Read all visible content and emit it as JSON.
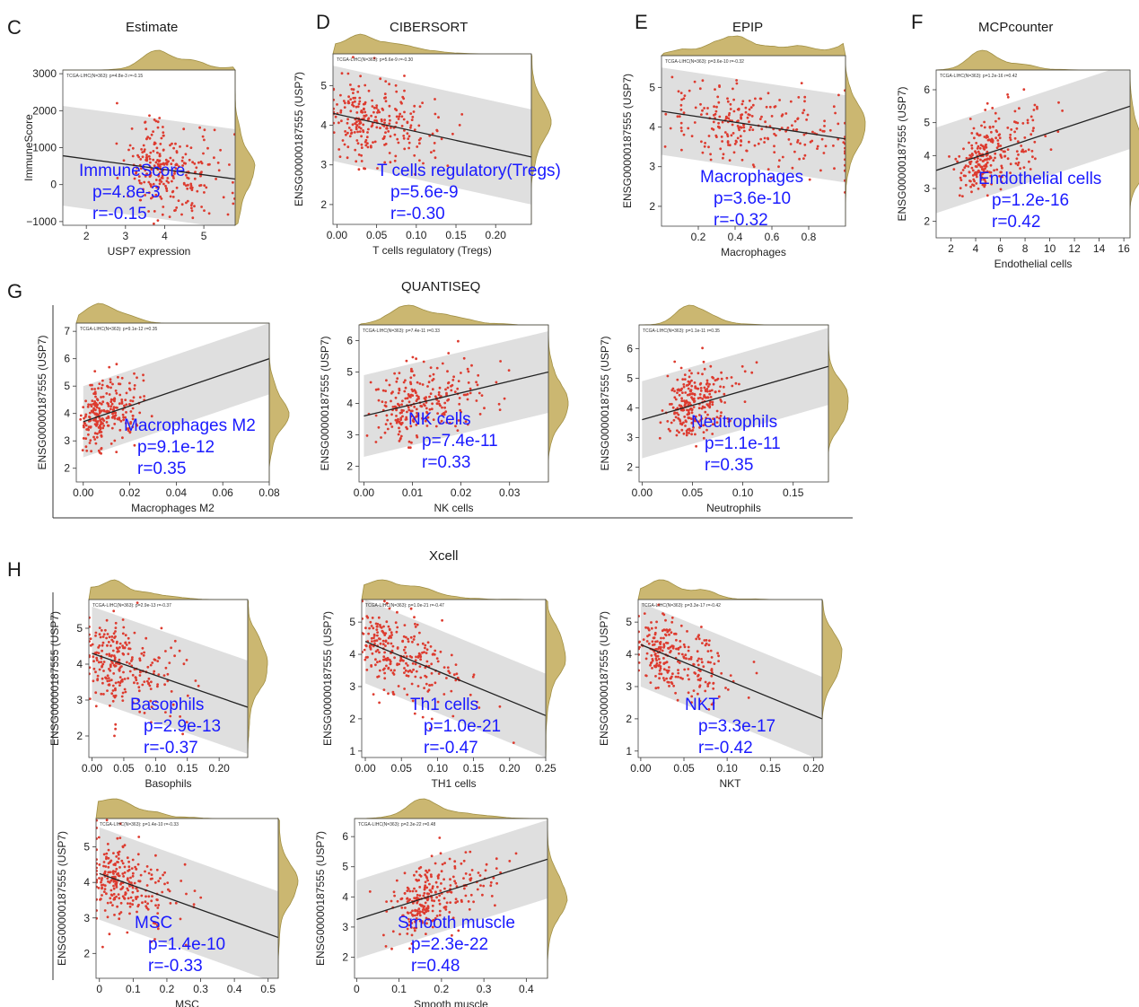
{
  "colors": {
    "point": "#dd3b2f",
    "band": "#d9d9d9",
    "line": "#222222",
    "density_fill": "#c9b46a",
    "density_stroke": "#9c8a3a",
    "annotation": "#1a1aff"
  },
  "sections": [
    {
      "letter": "C",
      "title": "Estimate"
    },
    {
      "letter": "D",
      "title": "CIBERSORT"
    },
    {
      "letter": "E",
      "title": "EPIP"
    },
    {
      "letter": "F",
      "title": "MCPcounter"
    },
    {
      "letter": "G",
      "title": "QUANTISEQ"
    },
    {
      "letter": "H",
      "title": "Xcell"
    }
  ],
  "chart_data": [
    {
      "type": "scatter",
      "id": "immunescore",
      "panel": "C",
      "xlabel": "USP7 expression",
      "ylabel": "ImmuneScore",
      "xlim": [
        1.4,
        5.8
      ],
      "ylim": [
        -1100,
        3100
      ],
      "xticks": [
        2,
        3,
        4,
        5
      ],
      "yticks": [
        -1000,
        0,
        1000,
        2000,
        3000
      ],
      "yticklabels": [
        "−1000",
        "0",
        "1000",
        "2000",
        "3000"
      ],
      "small_label": "TCGA-LIHC(N=363): p=4.8e-3 r=-0.15",
      "annotation": [
        "ImmuneScore",
        "p=4.8e-3",
        "r=-0.15"
      ],
      "fit": {
        "x": [
          1.4,
          5.8
        ],
        "y": [
          780,
          150
        ]
      },
      "band_halfwidth": 1350,
      "points_n": 363,
      "x_center": 4.0,
      "x_spread": 0.75
    },
    {
      "type": "scatter",
      "id": "tregs",
      "panel": "D",
      "xlabel": "T cells regulatory (Tregs)",
      "ylabel": "ENSG00000187555 (USP7)",
      "xlim": [
        -0.005,
        0.245
      ],
      "ylim": [
        1.5,
        5.8
      ],
      "xticks": [
        0,
        0.05,
        0.1,
        0.15,
        0.2
      ],
      "xticklabels": [
        "0.00",
        "0.05",
        "0.10",
        "0.15",
        "0.20"
      ],
      "yticks": [
        2,
        3,
        4,
        5
      ],
      "small_label": "TCGA-LIHC(N=363): p=5.6e-9 r=-0.30",
      "annotation": [
        "T cells regulatory(Tregs)",
        "p=5.6e-9",
        "r=-0.30"
      ],
      "fit": {
        "x": [
          -0.005,
          0.245
        ],
        "y": [
          4.3,
          3.2
        ]
      },
      "band_halfwidth": 1.2,
      "points_n": 363,
      "x_center": 0.04,
      "x_spread": 0.035
    },
    {
      "type": "scatter",
      "id": "macrophages",
      "panel": "E",
      "xlabel": "Macrophages",
      "ylabel": "ENSG00000187555 (USP7)",
      "xlim": [
        0,
        1.0
      ],
      "ylim": [
        1.5,
        5.8
      ],
      "xticks": [
        0.2,
        0.4,
        0.6,
        0.8
      ],
      "yticks": [
        2,
        3,
        4,
        5
      ],
      "small_label": "TCGA-LIHC(N=363): p=3.6e-10 r=-0.32",
      "annotation": [
        "Macrophages",
        "p=3.6e-10",
        "r=-0.32"
      ],
      "fit": {
        "x": [
          0,
          1.0
        ],
        "y": [
          4.4,
          3.7
        ]
      },
      "band_halfwidth": 1.1,
      "points_n": 363,
      "x_center": 0.45,
      "x_spread": 0.3
    },
    {
      "type": "scatter",
      "id": "endothelial",
      "panel": "F",
      "xlabel": "Endothelial cells",
      "ylabel": "ENSG00000187555 (USP7)",
      "xlim": [
        0.8,
        16.5
      ],
      "ylim": [
        1.5,
        6.6
      ],
      "xticks": [
        2,
        4,
        6,
        8,
        10,
        12,
        14,
        16
      ],
      "yticks": [
        2,
        3,
        4,
        5,
        6
      ],
      "small_label": "TCGA-LIHC(N=363): p=1.2e-16 r=0.42",
      "annotation": [
        "Endothelial cells",
        "p=1.2e-16",
        "r=0.42"
      ],
      "fit": {
        "x": [
          0.8,
          16.5
        ],
        "y": [
          3.55,
          5.5
        ]
      },
      "band_halfwidth": 1.3,
      "points_n": 363,
      "x_center": 5.0,
      "x_spread": 2.0
    },
    {
      "type": "scatter",
      "id": "macrophages-m2",
      "panel": "G",
      "xlabel": "Macrophages M2",
      "ylabel": "ENSG00000187555 (USP7)",
      "xlim": [
        -0.003,
        0.08
      ],
      "ylim": [
        1.5,
        7.3
      ],
      "xticks": [
        0,
        0.02,
        0.04,
        0.06,
        0.08
      ],
      "xticklabels": [
        "0.00",
        "0.02",
        "0.04",
        "0.06",
        "0.08"
      ],
      "yticks": [
        2,
        3,
        4,
        5,
        6,
        7
      ],
      "small_label": "TCGA-LIHC(N=363): p=9.1e-12 r=0.35",
      "annotation": [
        "Macrophages M2",
        "p=9.1e-12",
        "r=0.35"
      ],
      "fit": {
        "x": [
          0,
          0.08
        ],
        "y": [
          3.7,
          6.0
        ]
      },
      "band_halfwidth": 1.3,
      "points_n": 363,
      "x_center": 0.008,
      "x_spread": 0.007
    },
    {
      "type": "scatter",
      "id": "nk-cells",
      "panel": "G",
      "xlabel": "NK cells",
      "ylabel": "ENSG00000187555 (USP7)",
      "xlim": [
        -0.001,
        0.038
      ],
      "ylim": [
        1.5,
        6.5
      ],
      "xticks": [
        0,
        0.01,
        0.02,
        0.03
      ],
      "xticklabels": [
        "0.00",
        "0.01",
        "0.02",
        "0.03"
      ],
      "yticks": [
        2,
        3,
        4,
        5,
        6
      ],
      "small_label": "TCGA-LIHC(N=363): p=7.4e-11 r=0.33",
      "annotation": [
        "NK cells",
        "p=7.4e-11",
        "r=0.33"
      ],
      "fit": {
        "x": [
          0,
          0.038
        ],
        "y": [
          3.6,
          5.0
        ]
      },
      "band_halfwidth": 1.3,
      "points_n": 363,
      "x_center": 0.011,
      "x_spread": 0.006
    },
    {
      "type": "scatter",
      "id": "neutrophils",
      "panel": "G",
      "xlabel": "Neutrophils",
      "ylabel": "ENSG00000187555 (USP7)",
      "xlim": [
        -0.003,
        0.185
      ],
      "ylim": [
        1.5,
        6.8
      ],
      "xticks": [
        0,
        0.05,
        0.1,
        0.15
      ],
      "xticklabels": [
        "0.00",
        "0.05",
        "0.10",
        "0.15"
      ],
      "yticks": [
        2,
        3,
        4,
        5,
        6
      ],
      "small_label": "TCGA-LIHC(N=363): p=1.1e-11 r=0.35",
      "annotation": [
        "Neutrophils",
        "p=1.1e-11",
        "r=0.35"
      ],
      "fit": {
        "x": [
          0,
          0.185
        ],
        "y": [
          3.6,
          5.4
        ]
      },
      "band_halfwidth": 1.3,
      "points_n": 363,
      "x_center": 0.05,
      "x_spread": 0.02
    },
    {
      "type": "scatter",
      "id": "basophils",
      "panel": "H",
      "xlabel": "Basophils",
      "ylabel": "ENSG00000187555 (USP7)",
      "xlim": [
        -0.005,
        0.245
      ],
      "ylim": [
        1.4,
        5.8
      ],
      "xticks": [
        0,
        0.05,
        0.1,
        0.15,
        0.2
      ],
      "xticklabels": [
        "0.00",
        "0.05",
        "0.10",
        "0.15",
        "0.20"
      ],
      "yticks": [
        2,
        3,
        4,
        5
      ],
      "small_label": "TCGA-LIHC(N=363): p=2.9e-13 r=-0.37",
      "annotation": [
        "Basophils",
        "p=2.9e-13",
        "r=-0.37"
      ],
      "fit": {
        "x": [
          0,
          0.245
        ],
        "y": [
          4.3,
          2.8
        ]
      },
      "band_halfwidth": 1.3,
      "points_n": 363,
      "x_center": 0.04,
      "x_spread": 0.04
    },
    {
      "type": "scatter",
      "id": "th1-cells",
      "panel": "H",
      "xlabel": "TH1 cells",
      "ylabel": "ENSG00000187555 (USP7)",
      "xlim": [
        -0.005,
        0.25
      ],
      "ylim": [
        0.8,
        5.7
      ],
      "xticks": [
        0,
        0.05,
        0.1,
        0.15,
        0.2,
        0.25
      ],
      "xticklabels": [
        "0.00",
        "0.05",
        "0.10",
        "0.15",
        "0.20",
        "0.25"
      ],
      "yticks": [
        1,
        2,
        3,
        4,
        5
      ],
      "small_label": "TCGA-LIHC(N=363): p=1.0e-21 r=-0.47",
      "annotation": [
        "Th1 cells",
        "p=1.0e-21",
        "r=-0.47"
      ],
      "fit": {
        "x": [
          0,
          0.25
        ],
        "y": [
          4.4,
          2.1
        ]
      },
      "band_halfwidth": 1.3,
      "points_n": 363,
      "x_center": 0.04,
      "x_spread": 0.04
    },
    {
      "type": "scatter",
      "id": "nkt",
      "panel": "H",
      "xlabel": "NKT",
      "ylabel": "ENSG00000187555 (USP7)",
      "xlim": [
        -0.003,
        0.21
      ],
      "ylim": [
        0.8,
        5.7
      ],
      "xticks": [
        0,
        0.05,
        0.1,
        0.15,
        0.2
      ],
      "xticklabels": [
        "0.00",
        "0.05",
        "0.10",
        "0.15",
        "0.20"
      ],
      "yticks": [
        1,
        2,
        3,
        4,
        5
      ],
      "small_label": "TCGA-LIHC(N=363): p=3.3e-17 r=-0.42",
      "annotation": [
        "NKT",
        "p=3.3e-17",
        "r=-0.42"
      ],
      "fit": {
        "x": [
          0,
          0.21
        ],
        "y": [
          4.3,
          2.0
        ]
      },
      "band_halfwidth": 1.3,
      "points_n": 363,
      "x_center": 0.035,
      "x_spread": 0.03
    },
    {
      "type": "scatter",
      "id": "msc",
      "panel": "H",
      "xlabel": "MSC",
      "ylabel": "ENSG00000187555 (USP7)",
      "xlim": [
        -0.01,
        0.53
      ],
      "ylim": [
        1.3,
        5.8
      ],
      "xticks": [
        0,
        0.1,
        0.2,
        0.3,
        0.4,
        0.5
      ],
      "yticks": [
        2,
        3,
        4,
        5
      ],
      "small_label": "TCGA-LIHC(N=363): p=1.4e-10 r=-0.33",
      "annotation": [
        "MSC",
        "p=1.4e-10",
        "r=-0.33"
      ],
      "fit": {
        "x": [
          0,
          0.53
        ],
        "y": [
          4.25,
          2.45
        ]
      },
      "band_halfwidth": 1.3,
      "points_n": 363,
      "x_center": 0.06,
      "x_spread": 0.07
    },
    {
      "type": "scatter",
      "id": "smooth-muscle",
      "panel": "H",
      "xlabel": "Smooth muscle",
      "ylabel": "ENSG00000187555 (USP7)",
      "xlim": [
        -0.005,
        0.45
      ],
      "ylim": [
        1.3,
        6.6
      ],
      "xticks": [
        0,
        0.1,
        0.2,
        0.3,
        0.4
      ],
      "yticks": [
        2,
        3,
        4,
        5,
        6
      ],
      "small_label": "TCGA-LIHC(N=363): p=2.3e-22 r=0.48",
      "annotation": [
        "Smooth muscle",
        "p=2.3e-22",
        "r=0.48"
      ],
      "fit": {
        "x": [
          0,
          0.45
        ],
        "y": [
          3.25,
          5.25
        ]
      },
      "band_halfwidth": 1.3,
      "points_n": 363,
      "x_center": 0.17,
      "x_spread": 0.07
    }
  ]
}
